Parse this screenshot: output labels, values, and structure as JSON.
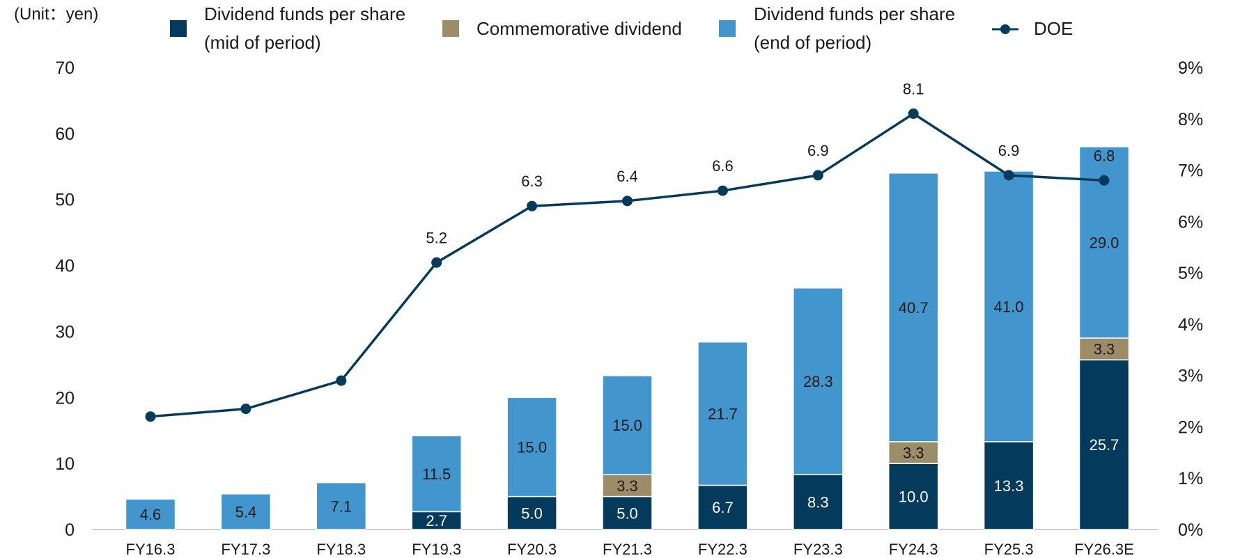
{
  "chart_data": {
    "type": "bar",
    "unit_label": "(Unit：yen)",
    "categories": [
      "FY16.3",
      "FY17.3",
      "FY18.3",
      "FY19.3",
      "FY20.3",
      "FY21.3",
      "FY22.3",
      "FY23.3",
      "FY24.3",
      "FY25.3",
      "FY26.3E"
    ],
    "series": [
      {
        "key": "mid",
        "name": "Dividend funds per share (mid of period)",
        "legend_lines": [
          "Dividend funds per share",
          "(mid of period)"
        ],
        "color": "#043a5c",
        "label_color": "#ffffff",
        "values": [
          null,
          null,
          null,
          2.7,
          5.0,
          5.0,
          6.7,
          8.3,
          10.0,
          13.3,
          25.7
        ]
      },
      {
        "key": "comm",
        "name": "Commemorative dividend",
        "legend_lines": [
          "Commemorative dividend"
        ],
        "color": "#9c8c67",
        "label_color": "#1a1a1a",
        "values": [
          null,
          null,
          null,
          null,
          null,
          3.3,
          null,
          null,
          3.3,
          null,
          3.3
        ]
      },
      {
        "key": "end",
        "name": "Dividend funds per share (end of period)",
        "legend_lines": [
          "Dividend funds per share",
          "(end of period)"
        ],
        "color": "#4396cd",
        "label_color": "#1a1a1a",
        "values": [
          4.6,
          5.4,
          7.1,
          11.5,
          15.0,
          15.0,
          21.7,
          28.3,
          40.7,
          41.0,
          29.0
        ]
      }
    ],
    "line": {
      "name": "DOE",
      "color": "#043a5c",
      "values": [
        2.2,
        2.35,
        2.9,
        5.2,
        6.3,
        6.4,
        6.6,
        6.9,
        8.1,
        6.9,
        6.8
      ],
      "labels": [
        "",
        "",
        "",
        "5.2",
        "6.3",
        "6.4",
        "6.6",
        "6.9",
        "8.1",
        "6.9",
        "6.8"
      ]
    },
    "y_left": {
      "min": 0,
      "max": 70,
      "ticks": [
        "0",
        "10",
        "20",
        "30",
        "40",
        "50",
        "60",
        "70"
      ]
    },
    "y_right": {
      "min": 0,
      "max": 9,
      "ticks": [
        "0%",
        "1%",
        "2%",
        "3%",
        "4%",
        "5%",
        "6%",
        "7%",
        "8%",
        "9%"
      ]
    },
    "legend_position": "top",
    "grid": false
  }
}
